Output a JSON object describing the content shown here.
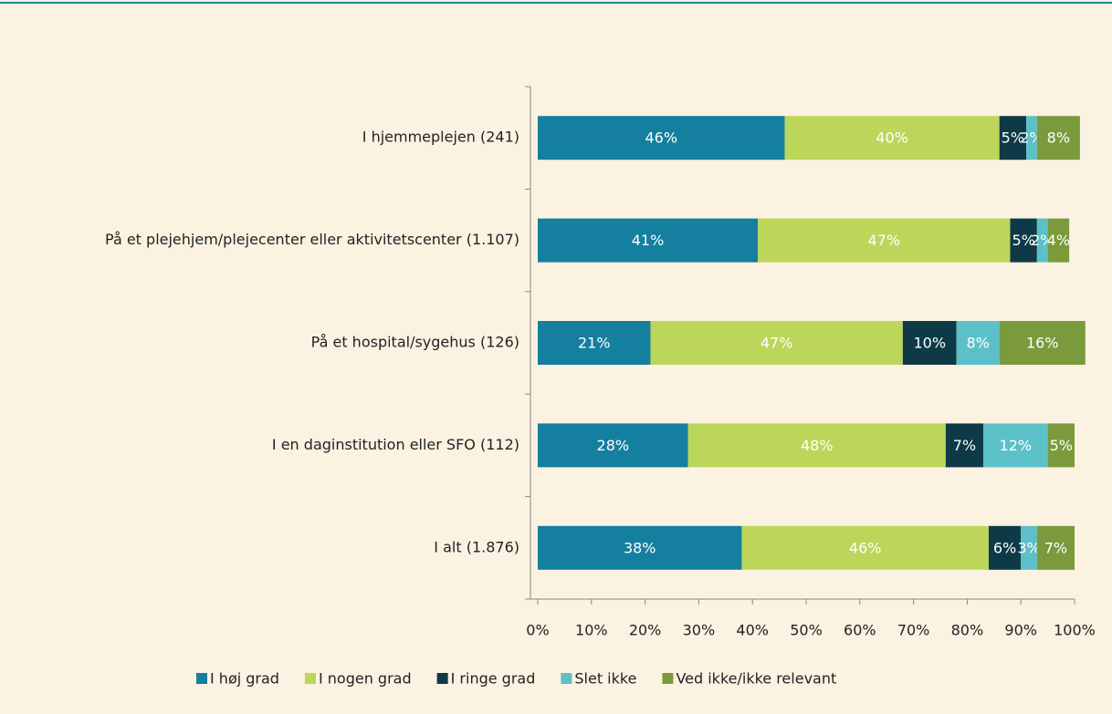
{
  "chart_data": {
    "type": "stacked-bar-horizontal",
    "categories": [
      "I hjemmeplejen (241)",
      "På et plejehjem/plejecenter eller aktivitetscenter (1.107)",
      "På et hospital/sygehus (126)",
      "I en daginstitution eller SFO (112)",
      "I alt (1.876)"
    ],
    "series": [
      {
        "name": "I høj grad",
        "color": "#147f9e",
        "values": [
          46,
          41,
          21,
          28,
          38
        ],
        "value_labels": [
          "46%",
          "41%",
          "21%",
          "28%",
          "38%"
        ]
      },
      {
        "name": "I nogen grad",
        "color": "#bcd65a",
        "values": [
          40,
          47,
          47,
          48,
          46
        ],
        "value_labels": [
          "40%",
          "47%",
          "47%",
          "48%",
          "46%"
        ]
      },
      {
        "name": "I ringe grad",
        "color": "#0d3a46",
        "values": [
          5,
          5,
          10,
          7,
          6
        ],
        "value_labels": [
          "5%",
          "5%",
          "10%",
          "7%",
          "6%"
        ]
      },
      {
        "name": "Slet ikke",
        "color": "#5cc0c9",
        "values": [
          2,
          2,
          8,
          12,
          3
        ],
        "value_labels": [
          "2%",
          "2%",
          "8%",
          "12%",
          "3%"
        ]
      },
      {
        "name": "Ved ikke/ikke relevant",
        "color": "#7a9a3c",
        "values": [
          8,
          4,
          16,
          5,
          7
        ],
        "value_labels": [
          "8%",
          "4%",
          "16%",
          "5%",
          "7%"
        ]
      }
    ],
    "xlim": [
      0,
      100
    ],
    "xticks": [
      {
        "value": 0,
        "label": "0%"
      },
      {
        "value": 10,
        "label": "10%"
      },
      {
        "value": 20,
        "label": "20%"
      },
      {
        "value": 30,
        "label": "30%"
      },
      {
        "value": 40,
        "label": "40%"
      },
      {
        "value": 50,
        "label": "50%"
      },
      {
        "value": 60,
        "label": "60%"
      },
      {
        "value": 70,
        "label": "70%"
      },
      {
        "value": 80,
        "label": "80%"
      },
      {
        "value": 90,
        "label": "90%"
      },
      {
        "value": 100,
        "label": "100%"
      }
    ],
    "legend": "bottom"
  }
}
